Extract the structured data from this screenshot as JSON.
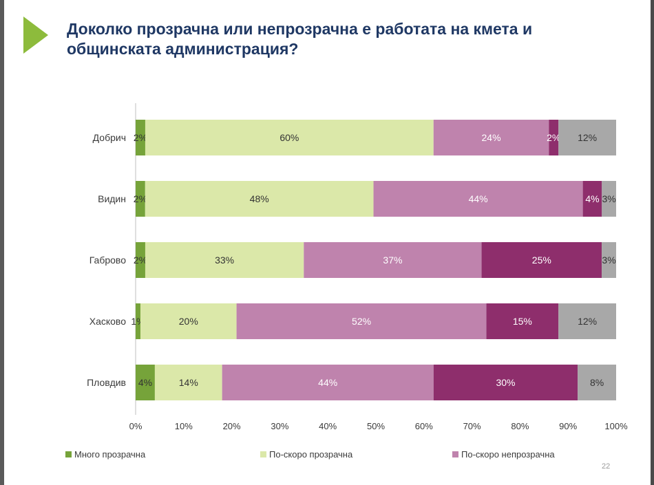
{
  "slide": {
    "title": "Доколко прозрачна или непрозрачна е работата на кмета и общинската администрация?",
    "page_number": "22"
  },
  "chart_data": {
    "type": "bar",
    "orientation": "horizontal",
    "stacked": true,
    "categories": [
      "Добрич",
      "Видин",
      "Габрово",
      "Хасково",
      "Пловдив"
    ],
    "series": [
      {
        "name": "Много прозрачна",
        "color": "#76a33a",
        "values": [
          2,
          2,
          2,
          1,
          4
        ],
        "labels": [
          "2%",
          "2%",
          "2%",
          "1%",
          "4%"
        ]
      },
      {
        "name": "По-скоро прозрачна",
        "color": "#dbe8a9",
        "values": [
          60,
          48,
          33,
          20,
          14
        ],
        "labels": [
          "60%",
          "48%",
          "33%",
          "20%",
          "14%"
        ]
      },
      {
        "name": "По-скоро непрозрачна",
        "color": "#bf83ad",
        "values": [
          24,
          44,
          37,
          52,
          44
        ],
        "labels": [
          "24%",
          "44%",
          "37%",
          "52%",
          "44%"
        ]
      },
      {
        "name": "",
        "color": "#8e2e6c",
        "values": [
          2,
          4,
          25,
          15,
          30
        ],
        "labels": [
          "2%",
          "4%",
          "25%",
          "15%",
          "30%"
        ]
      },
      {
        "name": "",
        "color": "#a8a8a8",
        "values": [
          12,
          3,
          3,
          12,
          8
        ],
        "labels": [
          "12%",
          "3%",
          "3%",
          "12%",
          "8%"
        ]
      }
    ],
    "x_ticks": [
      "0%",
      "10%",
      "20%",
      "30%",
      "40%",
      "50%",
      "60%",
      "70%",
      "80%",
      "90%",
      "100%"
    ],
    "xlim": [
      0,
      100
    ],
    "grid": false,
    "legend_position": "bottom"
  }
}
